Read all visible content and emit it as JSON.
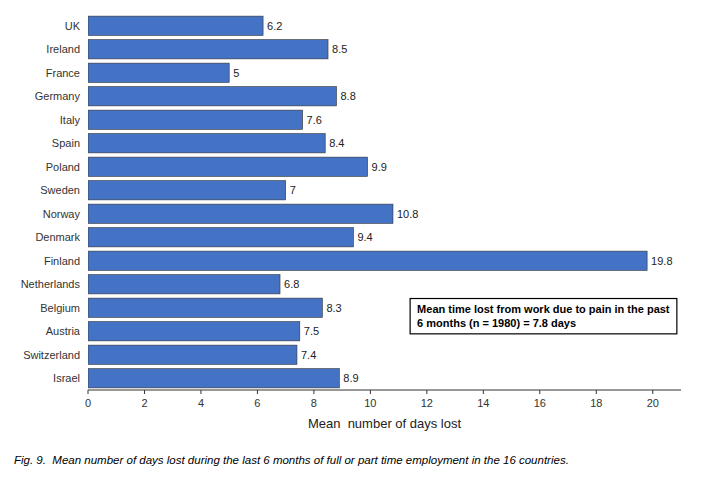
{
  "chart_data": {
    "type": "bar",
    "orientation": "horizontal",
    "categories": [
      "UK",
      "Ireland",
      "France",
      "Germany",
      "Italy",
      "Spain",
      "Poland",
      "Sweden",
      "Norway",
      "Denmark",
      "Finland",
      "Netherlands",
      "Belgium",
      "Austria",
      "Switzerland",
      "Israel"
    ],
    "values": [
      6.2,
      8.5,
      5,
      8.8,
      7.6,
      8.4,
      9.9,
      7,
      10.8,
      9.4,
      19.8,
      6.8,
      8.3,
      7.5,
      7.4,
      8.9
    ],
    "color": "#4472C4",
    "xlim": [
      0,
      21
    ],
    "xticks": [
      0,
      2,
      4,
      6,
      8,
      10,
      12,
      14,
      16,
      18,
      20
    ],
    "xlabel": "Mean  number of days lost",
    "annotation": "Mean time lost from work due to pain in the past\n6 months (n = 1980) = 7.8 days",
    "caption": "Fig. 9.  Mean number of days lost during the last 6 months of full or part time employment in the 16 countries.",
    "data_labels": true
  }
}
